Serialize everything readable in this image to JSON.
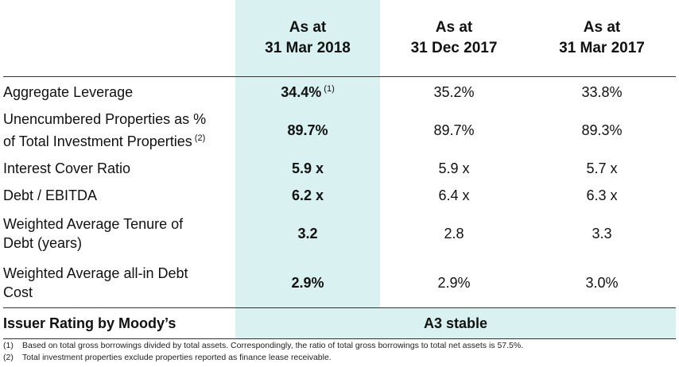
{
  "table": {
    "columns": [
      {
        "line1": "As at",
        "line2": "31 Mar 2018"
      },
      {
        "line1": "As at",
        "line2": "31 Dec 2017"
      },
      {
        "line1": "As at",
        "line2": "31 Mar 2017"
      }
    ],
    "rows": [
      {
        "label_line1": "Aggregate Leverage",
        "label_line2": "",
        "label_sup": "",
        "v1": "34.4%",
        "v1_sup": "(1)",
        "v2": "35.2%",
        "v3": "33.8%"
      },
      {
        "label_line1": "Unencumbered Properties as %",
        "label_line2": "of Total Investment Properties",
        "label_sup": "(2)",
        "v1": "89.7%",
        "v1_sup": "",
        "v2": "89.7%",
        "v3": "89.3%"
      },
      {
        "label_line1": "Interest Cover Ratio",
        "label_line2": "",
        "label_sup": "",
        "v1": "5.9 x",
        "v1_sup": "",
        "v2": "5.9 x",
        "v3": "5.7 x"
      },
      {
        "label_line1": "Debt / EBITDA",
        "label_line2": "",
        "label_sup": "",
        "v1": "6.2 x",
        "v1_sup": "",
        "v2": "6.4 x",
        "v3": "6.3 x"
      },
      {
        "label_line1": "Weighted Average Tenure of",
        "label_line2": "Debt (years)",
        "label_sup": "",
        "v1": "3.2",
        "v1_sup": "",
        "v2": "2.8",
        "v3": "3.3"
      },
      {
        "label_line1": "Weighted Average all-in Debt",
        "label_line2": "Cost",
        "label_sup": "",
        "v1": "2.9%",
        "v1_sup": "",
        "v2": "2.9%",
        "v3": "3.0%"
      }
    ],
    "rating": {
      "label": "Issuer Rating by Moody’s",
      "value": "A3 stable"
    }
  },
  "footnotes": [
    {
      "num": "(1)",
      "text": "Based on total gross borrowings divided by total assets. Correspondingly, the ratio of total gross borrowings to total net assets is 57.5%."
    },
    {
      "num": "(2)",
      "text": "Total investment properties exclude properties reported as finance lease receivable."
    }
  ],
  "colors": {
    "highlight": "#d9f1f1",
    "rule": "#333333"
  }
}
